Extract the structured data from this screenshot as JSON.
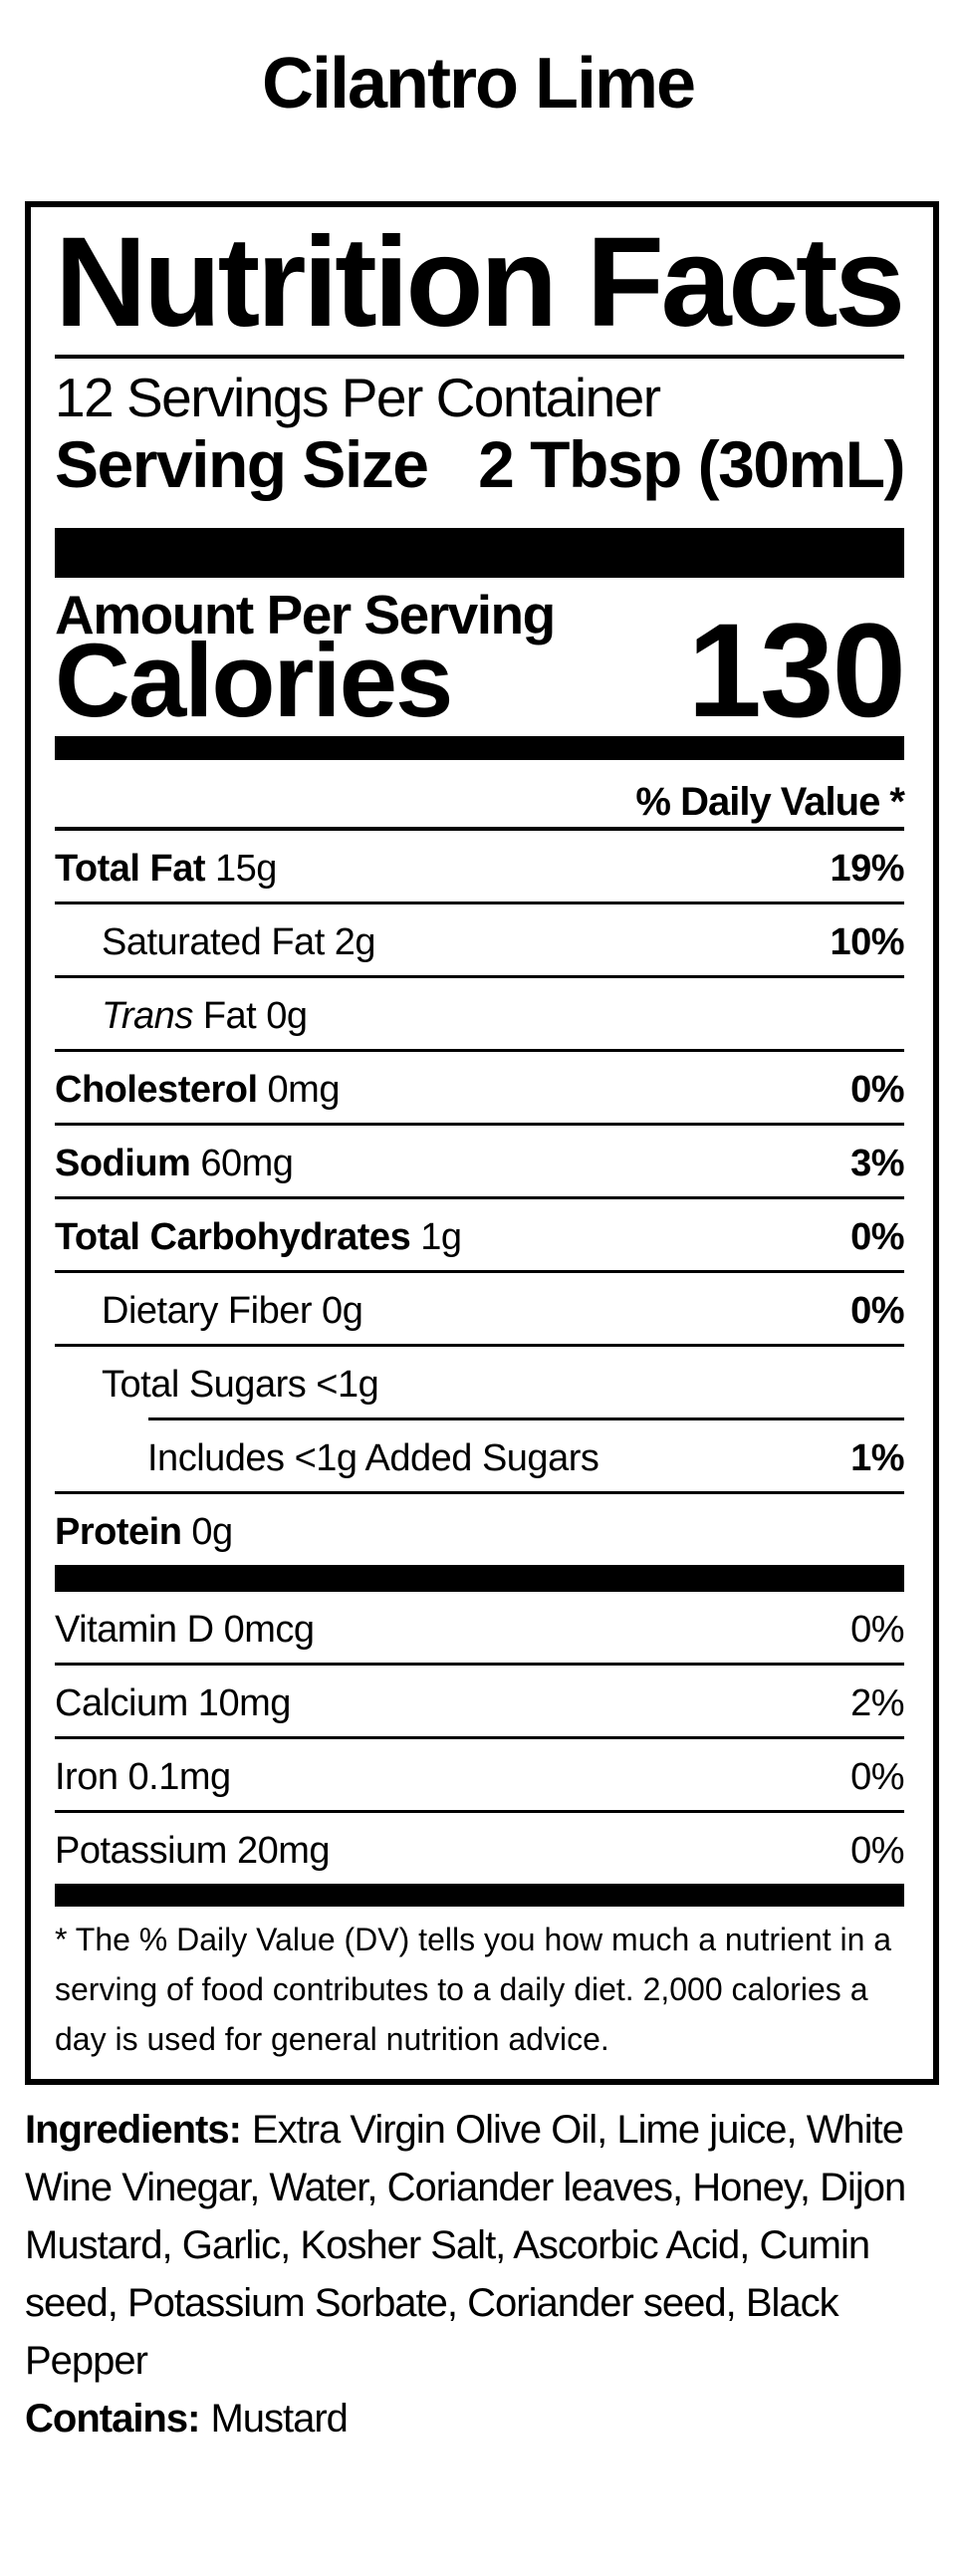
{
  "colors": {
    "text": "#000000",
    "background": "#ffffff"
  },
  "page": {
    "title": "Cilantro Lime"
  },
  "label": {
    "title": "Nutrition Facts",
    "servings_per_container": "12 Servings Per Container",
    "serving_size_label": "Serving Size",
    "serving_size_value": "2 Tbsp (30mL)",
    "amount_per_serving": "Amount Per Serving",
    "calories_label": "Calories",
    "calories_value": "130",
    "daily_value_header": "% Daily Value *",
    "rows": [
      {
        "bold": "Total Fat",
        "amount": "15g",
        "percent": "19%"
      },
      {
        "rest": "Saturated Fat 2g",
        "percent": "10%"
      },
      {
        "italic": "Trans",
        "amount": "Fat 0g",
        "percent": ""
      },
      {
        "bold": "Cholesterol",
        "amount": "0mg",
        "percent": "0%"
      },
      {
        "bold": "Sodium",
        "amount": "60mg",
        "percent": "3%"
      },
      {
        "bold": "Total Carbohydrates",
        "amount": "1g",
        "percent": "0%"
      },
      {
        "rest": "Dietary Fiber 0g",
        "percent": "0%"
      },
      {
        "rest": "Total Sugars <1g",
        "percent": ""
      },
      {
        "rest": "Includes <1g Added Sugars",
        "percent": "1%"
      },
      {
        "bold": "Protein",
        "amount": "0g",
        "percent": ""
      }
    ],
    "vitamins": [
      {
        "rest": "Vitamin D 0mcg",
        "percent": "0%"
      },
      {
        "rest": "Calcium 10mg",
        "percent": "2%"
      },
      {
        "rest": "Iron 0.1mg",
        "percent": "0%"
      },
      {
        "rest": "Potassium 20mg",
        "percent": "0%"
      }
    ],
    "footnote": {
      "line1": "* The % Daily Value (DV) tells you how much a nutrient in a",
      "line2": "serving of food contributes to a daily diet. 2,000 calories a",
      "line3": "day is used for general nutrition advice."
    }
  },
  "ingredients": {
    "label": "Ingredients:",
    "line1": "Extra Virgin Olive Oil, Lime juice, White",
    "line2": "Wine Vinegar, Water, Coriander leaves, Honey, Dijon",
    "line3": "Mustard, Garlic, Kosher Salt, Ascorbic Acid, Cumin",
    "line4": "seed, Potassium Sorbate, Coriander seed, Black",
    "line5": "Pepper",
    "contains_label": "Contains:",
    "contains_value": "Mustard"
  }
}
